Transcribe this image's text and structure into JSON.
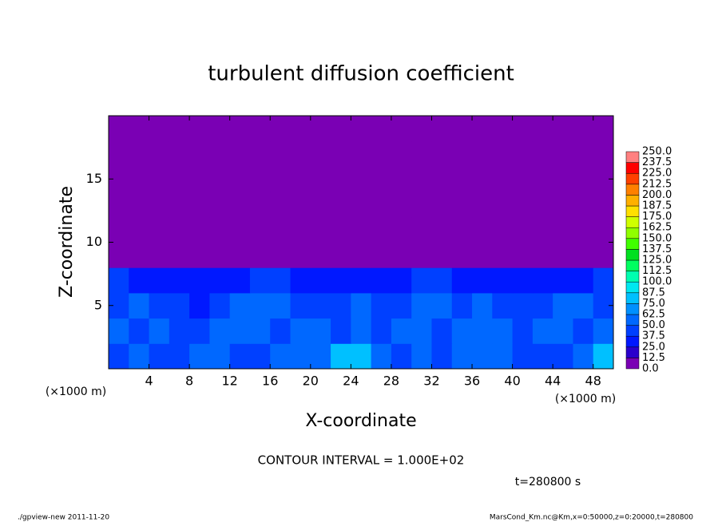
{
  "chart_data": {
    "type": "contour",
    "title": "turbulent diffusion coefficient",
    "xlabel": "X-coordinate",
    "ylabel": "Z-coordinate",
    "xunit": "(×1000 m)",
    "yunit": "(×1000 m)",
    "xlim": [
      0,
      50
    ],
    "ylim": [
      0,
      20
    ],
    "xticks": [
      4,
      8,
      12,
      16,
      20,
      24,
      28,
      32,
      36,
      40,
      44,
      48
    ],
    "yticks": [
      5,
      10,
      15
    ],
    "annotations": [
      "CONTOUR INTERVAL = 1.000E+02",
      "t=280800 s"
    ],
    "footer_left": "./gpview-new   2011-11-20",
    "footer_right": "MarsCond_Km.nc@Km,x=0:50000,z=0:20000,t=280800",
    "colorbar": {
      "levels": [
        {
          "value": 0,
          "label": "0.0"
        },
        12.5,
        {
          "value": 25,
          "label": "25.0"
        },
        37.5,
        {
          "value": 50,
          "label": "50.0"
        },
        62.5,
        {
          "value": 75,
          "label": "75.0"
        },
        87.5,
        {
          "value": 100,
          "label": "100.0"
        },
        112.5,
        {
          "value": 125,
          "label": "125.0"
        },
        137.5,
        {
          "value": 150,
          "label": "150.0"
        },
        162.5,
        {
          "value": 175,
          "label": "175.0"
        },
        187.5,
        {
          "value": 200,
          "label": "200.0"
        },
        212.5,
        {
          "value": 225,
          "label": "225.0"
        },
        237.5,
        {
          "value": 250,
          "label": "250.0"
        }
      ],
      "colors": [
        "#7a00b4",
        "#2a00cc",
        "#0018ff",
        "#0040ff",
        "#0068ff",
        "#0090ff",
        "#00c0ff",
        "#00e8f0",
        "#00ffb0",
        "#00ff60",
        "#00e020",
        "#40ff00",
        "#90ff00",
        "#d0ff00",
        "#ffe000",
        "#ffb000",
        "#ff8000",
        "#ff4000",
        "#ff0000",
        "#ff8080"
      ]
    },
    "field": {
      "x": [
        1,
        3,
        5,
        7,
        9,
        11,
        13,
        15,
        17,
        19,
        21,
        23,
        25,
        27,
        29,
        31,
        33,
        35,
        37,
        39,
        41,
        43,
        45,
        47,
        49
      ],
      "z": [
        1,
        3,
        5,
        7,
        9,
        11,
        13,
        15,
        17,
        19
      ],
      "values": [
        [
          45,
          50,
          40,
          45,
          55,
          50,
          45,
          40,
          50,
          60,
          55,
          80,
          75,
          50,
          45,
          55,
          45,
          50,
          55,
          60,
          45,
          40,
          45,
          50,
          85
        ],
        [
          50,
          45,
          55,
          40,
          45,
          55,
          60,
          50,
          45,
          50,
          55,
          45,
          50,
          40,
          55,
          50,
          45,
          55,
          60,
          50,
          45,
          50,
          55,
          45,
          50
        ],
        [
          45,
          50,
          40,
          45,
          35,
          40,
          50,
          60,
          55,
          45,
          40,
          45,
          50,
          45,
          40,
          55,
          50,
          45,
          50,
          45,
          40,
          45,
          50,
          55,
          45
        ],
        [
          40,
          35,
          30,
          30,
          25,
          30,
          35,
          45,
          40,
          30,
          25,
          30,
          30,
          35,
          30,
          40,
          45,
          35,
          30,
          30,
          25,
          30,
          30,
          35,
          40
        ],
        [
          0,
          0,
          0,
          0,
          0,
          0,
          0,
          0,
          0,
          0,
          0,
          0,
          0,
          0,
          0,
          0,
          0,
          0,
          0,
          0,
          0,
          0,
          0,
          0,
          0
        ],
        [
          0,
          0,
          0,
          0,
          0,
          0,
          0,
          0,
          0,
          0,
          0,
          0,
          0,
          0,
          0,
          0,
          0,
          0,
          0,
          0,
          0,
          0,
          0,
          0,
          0
        ],
        [
          0,
          0,
          0,
          0,
          0,
          0,
          0,
          0,
          0,
          0,
          0,
          0,
          0,
          0,
          0,
          0,
          0,
          0,
          0,
          0,
          0,
          0,
          0,
          0,
          0
        ],
        [
          0,
          0,
          0,
          0,
          0,
          0,
          0,
          0,
          0,
          0,
          0,
          0,
          0,
          0,
          0,
          0,
          0,
          0,
          0,
          0,
          0,
          0,
          0,
          0,
          0
        ],
        [
          0,
          0,
          0,
          0,
          0,
          0,
          0,
          0,
          0,
          0,
          0,
          0,
          0,
          0,
          0,
          0,
          0,
          0,
          0,
          0,
          0,
          0,
          0,
          0,
          0
        ],
        [
          0,
          0,
          0,
          0,
          0,
          0,
          0,
          0,
          0,
          0,
          0,
          0,
          0,
          0,
          0,
          0,
          0,
          0,
          0,
          0,
          0,
          0,
          0,
          0,
          0
        ]
      ]
    }
  }
}
